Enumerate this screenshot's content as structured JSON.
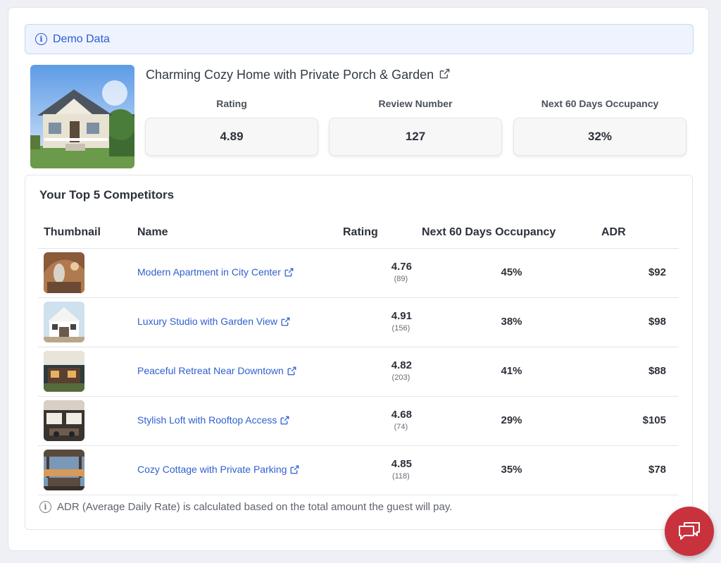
{
  "banner": {
    "icon": "info-icon",
    "text": "Demo Data"
  },
  "property": {
    "title": "Charming Cozy Home with Private Porch & Garden",
    "stats": [
      {
        "label": "Rating",
        "value": "4.89"
      },
      {
        "label": "Review Number",
        "value": "127"
      },
      {
        "label": "Next 60 Days Occupancy",
        "value": "32%"
      }
    ]
  },
  "competitors": {
    "title": "Your Top 5 Competitors",
    "columns": {
      "thumbnail": "Thumbnail",
      "name": "Name",
      "rating": "Rating",
      "occupancy": "Next 60 Days Occupancy",
      "adr": "ADR"
    },
    "rows": [
      {
        "name": "Modern Apartment in City Center",
        "rating": "4.76",
        "reviews": "(89)",
        "occupancy": "45%",
        "adr": "$92"
      },
      {
        "name": "Luxury Studio with Garden View",
        "rating": "4.91",
        "reviews": "(156)",
        "occupancy": "38%",
        "adr": "$98"
      },
      {
        "name": "Peaceful Retreat Near Downtown",
        "rating": "4.82",
        "reviews": "(203)",
        "occupancy": "41%",
        "adr": "$88"
      },
      {
        "name": "Stylish Loft with Rooftop Access",
        "rating": "4.68",
        "reviews": "(74)",
        "occupancy": "29%",
        "adr": "$105"
      },
      {
        "name": "Cozy Cottage with Private Parking",
        "rating": "4.85",
        "reviews": "(118)",
        "occupancy": "35%",
        "adr": "$78"
      }
    ],
    "footnote": "ADR (Average Daily Rate) is calculated based on the total amount the guest will pay."
  },
  "colors": {
    "accent": "#2f5fd0",
    "banner_bg": "#eef3fd",
    "chat_button": "#c8323c"
  },
  "chat": {
    "icon": "chat-icon"
  }
}
